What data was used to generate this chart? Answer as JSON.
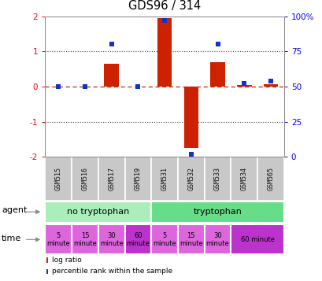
{
  "title": "GDS96 / 314",
  "samples": [
    "GSM515",
    "GSM516",
    "GSM517",
    "GSM519",
    "GSM531",
    "GSM532",
    "GSM533",
    "GSM534",
    "GSM565"
  ],
  "log_ratio": [
    0.0,
    0.0,
    0.65,
    0.0,
    1.95,
    -1.75,
    0.7,
    0.05,
    0.07
  ],
  "percentile_rank_pct": [
    50,
    50,
    80,
    50,
    97,
    2,
    80,
    52,
    54
  ],
  "ylim": [
    -2,
    2
  ],
  "yticks_left": [
    -2,
    -1,
    0,
    1,
    2
  ],
  "yticks_right": [
    0,
    25,
    50,
    75,
    100
  ],
  "bar_color": "#cc2200",
  "point_color": "#1133cc",
  "zero_line_color": "#cc2200",
  "dot_line_color": "#444444",
  "bg_plot": "#ffffff",
  "bg_sample": "#c8c8c8",
  "agent_groups": [
    {
      "label": "no tryptophan",
      "start": 0,
      "end": 4,
      "color": "#aaeebb"
    },
    {
      "label": "tryptophan",
      "start": 4,
      "end": 9,
      "color": "#66dd88"
    }
  ],
  "time_data": [
    {
      "col": 0,
      "span": 1,
      "label": "5\nminute",
      "color": "#dd66dd"
    },
    {
      "col": 1,
      "span": 1,
      "label": "15\nminute",
      "color": "#dd66dd"
    },
    {
      "col": 2,
      "span": 1,
      "label": "30\nminute",
      "color": "#dd66dd"
    },
    {
      "col": 3,
      "span": 1,
      "label": "60\nminute",
      "color": "#bb33cc"
    },
    {
      "col": 4,
      "span": 1,
      "label": "5\nminute",
      "color": "#dd66dd"
    },
    {
      "col": 5,
      "span": 1,
      "label": "15\nminute",
      "color": "#dd66dd"
    },
    {
      "col": 6,
      "span": 1,
      "label": "30\nminute",
      "color": "#dd66dd"
    },
    {
      "col": 7,
      "span": 2,
      "label": "60 minute",
      "color": "#bb33cc"
    }
  ],
  "legend_items": [
    {
      "label": "log ratio",
      "color": "#cc2200"
    },
    {
      "label": "percentile rank within the sample",
      "color": "#1133cc"
    }
  ]
}
